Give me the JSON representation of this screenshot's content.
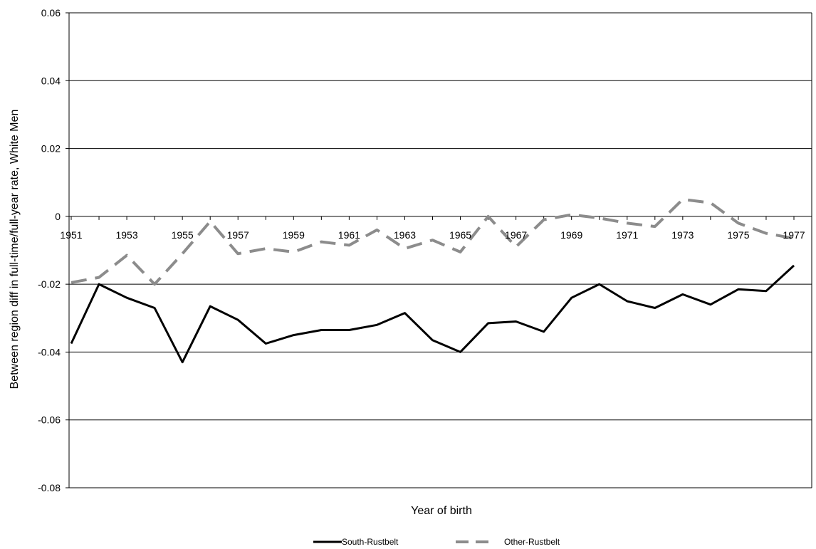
{
  "chart_data": {
    "type": "line",
    "title": "",
    "xlabel": "Year of birth",
    "ylabel": "Between region diff in full-time/full-year rate, White Men",
    "x": [
      1951,
      1952,
      1953,
      1954,
      1955,
      1956,
      1957,
      1958,
      1959,
      1960,
      1961,
      1962,
      1963,
      1964,
      1965,
      1966,
      1967,
      1968,
      1969,
      1970,
      1971,
      1972,
      1973,
      1974,
      1975,
      1976,
      1977
    ],
    "x_tick_labels": [
      "1951",
      "1953",
      "1955",
      "1957",
      "1959",
      "1961",
      "1963",
      "1965",
      "1967",
      "1969",
      "1971",
      "1973",
      "1975",
      "1977"
    ],
    "y_tick_labels": [
      "0.06",
      "0.04",
      "0.02",
      "0",
      "-0.02",
      "-0.04",
      "-0.06",
      "-0.08"
    ],
    "y_ticks": [
      0.06,
      0.04,
      0.02,
      0,
      -0.02,
      -0.04,
      -0.06,
      -0.08
    ],
    "ylim": [
      -0.08,
      0.06
    ],
    "grid": "horizontal",
    "legend_position": "bottom",
    "series": [
      {
        "name": "South-Rustbelt",
        "color": "#000000",
        "style": "solid",
        "values": [
          -0.0375,
          -0.02,
          -0.024,
          -0.027,
          -0.043,
          -0.0265,
          -0.0305,
          -0.0375,
          -0.035,
          -0.0335,
          -0.0335,
          -0.032,
          -0.0285,
          -0.0365,
          -0.04,
          -0.0315,
          -0.031,
          -0.034,
          -0.024,
          -0.02,
          -0.025,
          -0.027,
          -0.023,
          -0.026,
          -0.0215,
          -0.022,
          -0.0145
        ]
      },
      {
        "name": "Other-Rustbelt",
        "color": "#8c8c8c",
        "style": "dashed",
        "values": [
          -0.0195,
          -0.018,
          -0.0115,
          -0.02,
          -0.011,
          -0.0015,
          -0.011,
          -0.0095,
          -0.0105,
          -0.0075,
          -0.0085,
          -0.004,
          -0.0095,
          -0.007,
          -0.0105,
          0.0,
          -0.009,
          -0.001,
          0.0005,
          -0.0005,
          -0.002,
          -0.003,
          0.005,
          0.004,
          -0.002,
          -0.005,
          -0.0065
        ]
      }
    ]
  }
}
